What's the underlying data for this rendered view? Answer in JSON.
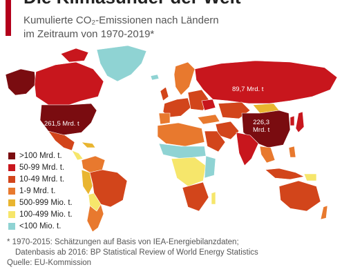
{
  "header": {
    "title": "Die Klimasünder der Welt",
    "subtitle_line1": "Kumulierte CO₂-Emissionen nach Ländern",
    "subtitle_line2": "im Zeitraum von 1970-2019*"
  },
  "map_labels": {
    "usa": "261,5 Mrd. t",
    "russia": "89,7 Mrd. t",
    "china_value": "226,3",
    "china_unit": "Mrd. t"
  },
  "legend": [
    {
      "label": ">100 Mrd. t.",
      "color": "#7a0c10"
    },
    {
      "label": "50-99 Mrd. t.",
      "color": "#c8161d"
    },
    {
      "label": "10-49 Mrd. t.",
      "color": "#d2451b"
    },
    {
      "label": "1-9 Mrd. t.",
      "color": "#e8792e"
    },
    {
      "label": "500-999 Mio. t.",
      "color": "#e9b530"
    },
    {
      "label": "100-499 Mio. t.",
      "color": "#f6e66b"
    },
    {
      "label": "<100 Mio. t.",
      "color": "#8fd3d3"
    }
  ],
  "footnote": {
    "line1": "* 1970-2015: Schätzungen auf Basis von IEA-Energiebilanzdaten;",
    "line2": "Datenbasis ab 2016: BP Statistical Review of World Energy Statistics",
    "source": "Quelle: EU-Kommission"
  }
}
